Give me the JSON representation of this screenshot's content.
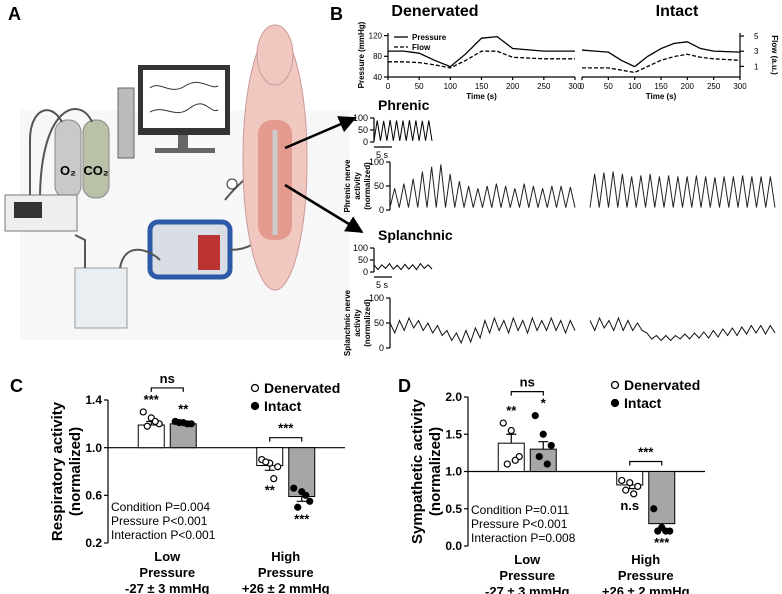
{
  "panel_labels": [
    "A",
    "B",
    "C",
    "D"
  ],
  "illustration": {
    "gas_labels": [
      "O₂",
      "CO₂"
    ]
  },
  "column_titles": [
    "Denervated",
    "Intact"
  ],
  "chart_data": [
    {
      "type": "line",
      "x": [
        0,
        25,
        50,
        75,
        100,
        125,
        150,
        175,
        200,
        250,
        300
      ],
      "xlim": [
        0,
        300
      ],
      "xticks": [
        0,
        50,
        100,
        150,
        200,
        250,
        300
      ],
      "xlabel": "Time (s)",
      "ylabel": "Pressure (mmHg)",
      "ylim": [
        40,
        125
      ],
      "yticks": [
        40,
        80,
        120
      ],
      "y2lim": [
        -0.4,
        5.4
      ],
      "legend": "top-left",
      "series": [
        {
          "name": "Pressure",
          "color": "#000000",
          "dash": false,
          "values": [
            90,
            90,
            86,
            72,
            60,
            85,
            115,
            118,
            95,
            90,
            90
          ]
        },
        {
          "name": "Flow",
          "color": "#000000",
          "dash": true,
          "axis": "y2",
          "values": [
            1.6,
            1.6,
            1.5,
            1.2,
            0.8,
            1.8,
            3.0,
            3.0,
            2.2,
            2.0,
            2.0
          ]
        }
      ]
    },
    {
      "type": "line",
      "x": [
        0,
        25,
        50,
        75,
        100,
        125,
        150,
        175,
        200,
        225,
        250,
        300
      ],
      "xlim": [
        0,
        300
      ],
      "xticks": [
        0,
        50,
        100,
        150,
        200,
        250,
        300
      ],
      "xlabel": "Time (s)",
      "ylim": [
        40,
        125
      ],
      "y2lim": [
        -0.4,
        5.4
      ],
      "y2ticks": [
        1,
        3,
        5
      ],
      "y2label": "Flow (a.u.)",
      "series": [
        {
          "color": "#000000",
          "dash": false,
          "values": [
            92,
            90,
            88,
            72,
            60,
            80,
            95,
            105,
            108,
            95,
            90,
            88
          ]
        },
        {
          "color": "#000000",
          "dash": true,
          "axis": "y2",
          "values": [
            0.8,
            0.8,
            0.8,
            0.5,
            0.2,
            1.0,
            1.8,
            2.3,
            2.6,
            2.2,
            2.0,
            1.8
          ]
        }
      ]
    },
    {
      "type": "trace",
      "title": "Phrenic",
      "ylim": [
        0,
        100
      ],
      "yticks": [
        0,
        50,
        100
      ],
      "scale_bar": "5 s",
      "color": "#000000",
      "values": [
        5,
        90,
        5,
        88,
        5,
        92,
        5,
        90,
        5,
        89,
        5,
        91,
        5,
        90,
        5,
        88,
        5,
        90,
        5
      ]
    },
    {
      "type": "trace",
      "ylabel": [
        "Phrenic nerve",
        "activity",
        "(normalized)"
      ],
      "ylim": [
        0,
        100
      ],
      "yticks": [
        0,
        50,
        100
      ],
      "color": "#222222",
      "values": [
        5,
        45,
        5,
        55,
        5,
        65,
        5,
        80,
        5,
        90,
        5,
        95,
        5,
        75,
        5,
        60,
        5,
        50,
        5,
        45,
        5,
        50,
        5,
        55,
        5,
        50,
        5,
        45,
        5,
        55,
        5,
        50,
        5,
        45,
        5,
        50,
        5,
        50,
        5,
        48,
        5
      ]
    },
    {
      "type": "trace",
      "ylim": [
        0,
        100
      ],
      "color": "#222222",
      "values": [
        5,
        75,
        5,
        78,
        5,
        80,
        5,
        75,
        5,
        70,
        5,
        72,
        5,
        75,
        5,
        70,
        5,
        72,
        5,
        70,
        5,
        70,
        5,
        72,
        5,
        70,
        5,
        68,
        5,
        70,
        5,
        70,
        5,
        72,
        5,
        70,
        5,
        70,
        5,
        70,
        5
      ]
    },
    {
      "type": "trace",
      "title": "Splanchnic",
      "ylim": [
        0,
        100
      ],
      "yticks": [
        0,
        50,
        100
      ],
      "scale_bar": "5 s",
      "color": "#000000",
      "values": [
        30,
        10,
        30,
        15,
        35,
        12,
        28,
        10,
        32,
        12,
        30,
        10,
        35,
        15,
        30,
        12
      ]
    },
    {
      "type": "trace",
      "ylabel": [
        "Splanchnic nerve",
        "activity",
        "(normalized)"
      ],
      "ylim": [
        0,
        100
      ],
      "yticks": [
        0,
        50,
        100
      ],
      "color": "#111111",
      "values": [
        50,
        30,
        55,
        35,
        60,
        40,
        55,
        35,
        50,
        30,
        45,
        25,
        35,
        15,
        30,
        10,
        35,
        12,
        40,
        20,
        55,
        30,
        60,
        35,
        55,
        30,
        60,
        35,
        55,
        30,
        60,
        35,
        55,
        35,
        60,
        35,
        55,
        30,
        55,
        35
      ]
    },
    {
      "type": "trace",
      "ylim": [
        0,
        100
      ],
      "color": "#111111",
      "values": [
        55,
        35,
        60,
        40,
        55,
        35,
        60,
        35,
        55,
        35,
        50,
        35,
        30,
        18,
        25,
        15,
        25,
        15,
        25,
        18,
        28,
        18,
        30,
        20,
        32,
        20,
        35,
        22,
        38,
        25,
        40,
        25,
        42,
        28,
        45,
        30,
        45,
        28,
        45,
        30
      ]
    },
    {
      "type": "bar",
      "ylabel": [
        "Respiratory activity",
        "(normalized)"
      ],
      "categories": [
        [
          "Low",
          "Pressure",
          "-27 ± 3 mmHg"
        ],
        [
          "High",
          "Pressure",
          "+26 ± 2 mmHg"
        ]
      ],
      "ylim": [
        0.2,
        1.4
      ],
      "yticks": [
        0.2,
        0.6,
        {
          "value": 1,
          "label": "1.0"
        },
        1.4
      ],
      "baseline": 1,
      "series": [
        {
          "name": "Denervated",
          "color": "#ffffff",
          "marker": "open",
          "values": [
            1.19,
            0.85
          ],
          "errors": [
            0.03,
            0.04
          ],
          "points": [
            [
              1.3,
              1.25,
              1.2,
              1.18,
              1.22
            ],
            [
              0.9,
              0.87,
              0.84,
              0.88,
              0.74
            ]
          ],
          "stars": [
            "***",
            "**"
          ]
        },
        {
          "name": "Intact",
          "color": "#a6a6a6",
          "marker": "filled",
          "values": [
            1.2,
            0.59
          ],
          "errors": [
            0.01,
            0.04
          ],
          "points": [
            [
              1.22,
              1.21,
              1.2,
              1.21,
              1.2
            ],
            [
              0.66,
              0.63,
              0.55,
              0.5,
              0.6
            ]
          ],
          "stars": [
            "**",
            "***"
          ]
        }
      ],
      "comparisons": [
        "ns",
        "***"
      ],
      "stats": [
        "Condition P=0.004",
        "Pressure P<0.001",
        "Interaction P<0.001"
      ]
    },
    {
      "type": "bar",
      "ylabel": [
        "Sympathetic activity",
        "(normalized)"
      ],
      "categories": [
        [
          "Low",
          "Pressure",
          "-27 ± 3 mmHg"
        ],
        [
          "High",
          "Pressure",
          "+26 ± 2 mmHg"
        ]
      ],
      "ylim": [
        0,
        2
      ],
      "yticks": [
        {
          "value": 0,
          "label": "0.0"
        },
        0.5,
        {
          "value": 1,
          "label": "1.0"
        },
        1.5,
        {
          "value": 2,
          "label": "2.0"
        }
      ],
      "baseline": 1,
      "series": [
        {
          "name": "Denervated",
          "color": "#ffffff",
          "marker": "open",
          "values": [
            1.38,
            0.82
          ],
          "errors": [
            0.12,
            0.05
          ],
          "points": [
            [
              1.65,
              1.55,
              1.2,
              1.1,
              1.15
            ],
            [
              0.88,
              0.85,
              0.8,
              0.75,
              0.7
            ]
          ],
          "stars": [
            "**",
            "n.s"
          ]
        },
        {
          "name": "Intact",
          "color": "#a6a6a6",
          "marker": "filled",
          "values": [
            1.3,
            0.3
          ],
          "errors": [
            0.1,
            0.06
          ],
          "points": [
            [
              1.75,
              1.5,
              1.35,
              1.2,
              1.1
            ],
            [
              0.5,
              0.25,
              0.2,
              0.2,
              0.2
            ]
          ],
          "stars": [
            "*",
            "***"
          ]
        }
      ],
      "comparisons": [
        "ns",
        "***"
      ],
      "stats": [
        "Condition P=0.011",
        "Pressure P<0.001",
        "Interaction P=0.008"
      ]
    }
  ]
}
